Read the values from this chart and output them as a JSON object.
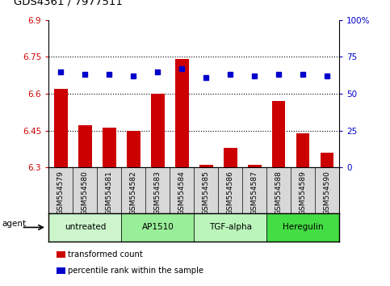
{
  "title": "GDS4361 / 7977511",
  "categories": [
    "GSM554579",
    "GSM554580",
    "GSM554581",
    "GSM554582",
    "GSM554583",
    "GSM554584",
    "GSM554585",
    "GSM554586",
    "GSM554587",
    "GSM554588",
    "GSM554589",
    "GSM554590"
  ],
  "red_values": [
    6.62,
    6.47,
    6.46,
    6.45,
    6.6,
    6.74,
    6.31,
    6.38,
    6.31,
    6.57,
    6.44,
    6.36
  ],
  "blue_values": [
    65,
    63,
    63,
    62,
    65,
    67,
    61,
    63,
    62,
    63,
    63,
    62
  ],
  "ylim_left": [
    6.3,
    6.9
  ],
  "ylim_right": [
    0,
    100
  ],
  "yticks_left": [
    6.3,
    6.45,
    6.6,
    6.75,
    6.9
  ],
  "yticks_right": [
    0,
    25,
    50,
    75,
    100
  ],
  "ytick_labels_right": [
    "0",
    "25",
    "50",
    "75",
    "100%"
  ],
  "agent_groups": [
    {
      "label": "untreated",
      "start": 0,
      "end": 3,
      "color": "#ccf5cc"
    },
    {
      "label": "AP1510",
      "start": 3,
      "end": 6,
      "color": "#99ee99"
    },
    {
      "label": "TGF-alpha",
      "start": 6,
      "end": 9,
      "color": "#bbf5bb"
    },
    {
      "label": "Heregulin",
      "start": 9,
      "end": 12,
      "color": "#44dd44"
    }
  ],
  "bar_color": "#cc0000",
  "dot_color": "#0000cc",
  "grid_color": "#000000",
  "left_tick_color": "#cc0000",
  "right_tick_color": "#0000cc",
  "label_bg_color": "#d8d8d8",
  "legend_items": [
    {
      "label": "transformed count",
      "color": "#cc0000"
    },
    {
      "label": "percentile rank within the sample",
      "color": "#0000cc"
    }
  ]
}
